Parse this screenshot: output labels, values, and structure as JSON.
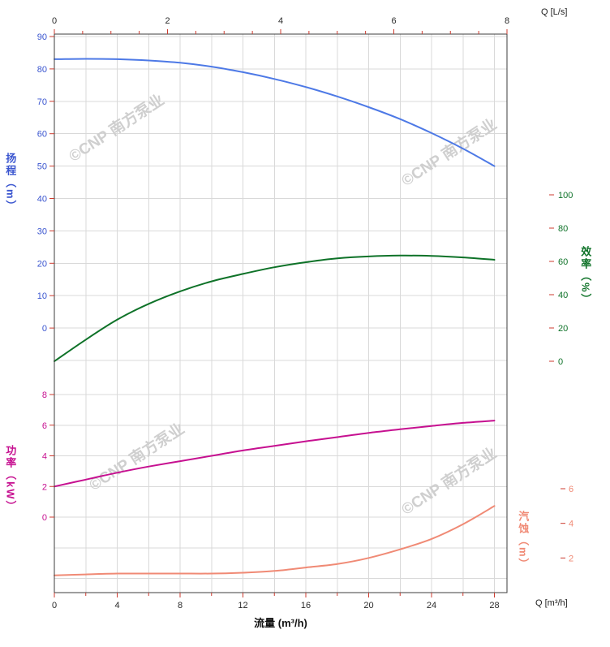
{
  "watermark": {
    "text": "©CNP 南方泵业"
  },
  "chart_data": {
    "type": "line",
    "title": "",
    "x_axis_bottom": {
      "name": "流量 (m³/h)",
      "unit_label": "Q [m³/h]",
      "ticks": [
        0,
        4,
        8,
        12,
        16,
        20,
        24,
        28
      ],
      "minor_step": 2,
      "range": [
        0,
        28.8
      ]
    },
    "x_axis_top": {
      "unit_label": "Q [L/s]",
      "ticks": [
        0,
        2,
        4,
        6,
        8
      ],
      "minor_step": 0.5,
      "range": [
        0,
        8
      ]
    },
    "y_axes": {
      "head": {
        "label": "扬程（m）",
        "unit": "m",
        "color": "#3a55cf",
        "ticks": [
          90,
          80,
          70,
          60,
          50,
          40,
          30,
          20,
          10,
          0
        ],
        "range": [
          -20,
          90
        ]
      },
      "efficiency": {
        "label": "效率（%）",
        "unit": "%",
        "color": "#0e7228",
        "ticks": [
          100,
          80,
          60,
          40,
          20,
          0
        ],
        "range": [
          0,
          100
        ]
      },
      "power": {
        "label": "功率（kW）",
        "unit": "kW",
        "color": "#c61090",
        "ticks": [
          8,
          6,
          4,
          2,
          0
        ],
        "range": [
          0,
          8
        ]
      },
      "npsh": {
        "label": "汽蚀（m）",
        "unit": "m",
        "color": "#f08a75",
        "ticks": [
          6,
          4,
          2
        ],
        "range": [
          0,
          6
        ]
      }
    },
    "series": [
      {
        "name": "head-curve",
        "axis": "head",
        "color": "#4d79e6",
        "points": [
          [
            0,
            83
          ],
          [
            2,
            83.1
          ],
          [
            4,
            83
          ],
          [
            6,
            82.6
          ],
          [
            8,
            81.9
          ],
          [
            10,
            80.7
          ],
          [
            12,
            79
          ],
          [
            14,
            76.9
          ],
          [
            16,
            74.4
          ],
          [
            18,
            71.5
          ],
          [
            20,
            68.2
          ],
          [
            22,
            64.5
          ],
          [
            24,
            60.2
          ],
          [
            26,
            55.4
          ],
          [
            28,
            50
          ]
        ]
      },
      {
        "name": "efficiency-curve",
        "axis": "efficiency",
        "color": "#0e7228",
        "points": [
          [
            0,
            0
          ],
          [
            2,
            13
          ],
          [
            4,
            25
          ],
          [
            6,
            34.5
          ],
          [
            8,
            42
          ],
          [
            10,
            48
          ],
          [
            12,
            52.5
          ],
          [
            14,
            56.5
          ],
          [
            16,
            59.5
          ],
          [
            18,
            61.8
          ],
          [
            20,
            63
          ],
          [
            22,
            63.5
          ],
          [
            24,
            63.3
          ],
          [
            26,
            62.4
          ],
          [
            28,
            61
          ]
        ]
      },
      {
        "name": "power-curve",
        "axis": "power",
        "color": "#c61090",
        "points": [
          [
            0,
            2.0
          ],
          [
            2,
            2.45
          ],
          [
            4,
            2.9
          ],
          [
            6,
            3.3
          ],
          [
            8,
            3.65
          ],
          [
            10,
            4.0
          ],
          [
            12,
            4.35
          ],
          [
            14,
            4.65
          ],
          [
            16,
            4.95
          ],
          [
            18,
            5.22
          ],
          [
            20,
            5.5
          ],
          [
            22,
            5.73
          ],
          [
            24,
            5.95
          ],
          [
            26,
            6.15
          ],
          [
            28,
            6.3
          ]
        ]
      },
      {
        "name": "npsh-curve",
        "axis": "npsh",
        "color": "#f08a75",
        "points": [
          [
            0,
            1.0
          ],
          [
            2,
            1.05
          ],
          [
            4,
            1.1
          ],
          [
            6,
            1.1
          ],
          [
            8,
            1.1
          ],
          [
            10,
            1.1
          ],
          [
            12,
            1.15
          ],
          [
            14,
            1.25
          ],
          [
            16,
            1.45
          ],
          [
            18,
            1.65
          ],
          [
            20,
            2.0
          ],
          [
            22,
            2.5
          ],
          [
            24,
            3.1
          ],
          [
            26,
            3.95
          ],
          [
            28,
            5.0
          ]
        ]
      }
    ],
    "style": {
      "grid_color": "#d9d9d9",
      "tick_color": "#cc3b2f",
      "frame_color": "#3c3c3c",
      "x_number_color": "#2a2a2a",
      "watermark_color": "#cfcfcf"
    }
  }
}
